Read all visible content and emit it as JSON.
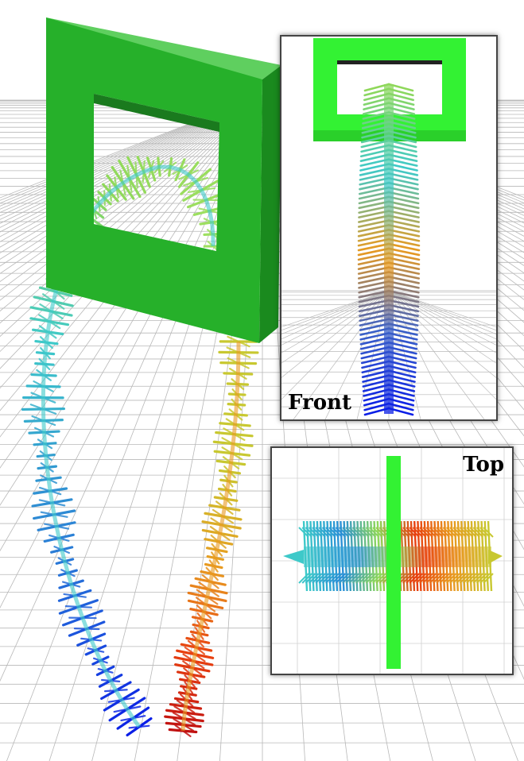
{
  "views": {
    "front_label": "Front",
    "top_label": "Top"
  },
  "colors": {
    "frame_main": "#26b02a",
    "frame_side": "#1a8a1e",
    "frame_bright": "#33f233",
    "grid": "#b8b8b8",
    "gradient": [
      "#0a1ee6",
      "#2a7fd6",
      "#3ec9c9",
      "#8fd85a",
      "#c8c830",
      "#e89a20",
      "#e84010",
      "#c01010"
    ]
  }
}
